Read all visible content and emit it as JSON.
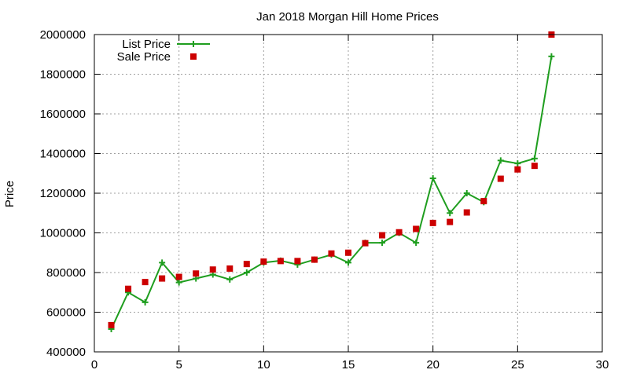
{
  "chart_data": {
    "type": "line",
    "title": "Jan 2018 Morgan Hill Home Prices",
    "xlabel": "",
    "ylabel": "Price",
    "xlim": [
      0,
      30
    ],
    "ylim": [
      400000,
      2000000
    ],
    "xticks": [
      0,
      5,
      10,
      15,
      20,
      25,
      30
    ],
    "yticks": [
      400000,
      600000,
      800000,
      1000000,
      1200000,
      1400000,
      1600000,
      1800000,
      2000000
    ],
    "x_tick_labels": [
      "0",
      "5",
      "10",
      "15",
      "20",
      "25",
      "30"
    ],
    "y_tick_labels": [
      "400000",
      "600000",
      "800000",
      "1000000",
      "1200000",
      "1400000",
      "1600000",
      "1800000",
      "2000000"
    ],
    "grid": true,
    "legend_position": "top-left",
    "series": [
      {
        "name": "List Price",
        "style": "lines-points",
        "marker": "plus",
        "color": "#1f9e1f",
        "x": [
          1,
          2,
          3,
          4,
          5,
          6,
          7,
          8,
          9,
          10,
          11,
          12,
          13,
          14,
          15,
          16,
          17,
          18,
          19,
          20,
          21,
          22,
          23,
          24,
          25,
          26,
          27
        ],
        "y": [
          515000,
          700000,
          650000,
          850000,
          750000,
          770000,
          790000,
          765000,
          800000,
          850000,
          860000,
          840000,
          865000,
          890000,
          850000,
          950000,
          950000,
          1000000,
          950000,
          1275000,
          1100000,
          1200000,
          1155000,
          1365000,
          1350000,
          1375000,
          1890000
        ]
      },
      {
        "name": "Sale Price",
        "style": "points",
        "marker": "square",
        "color": "#cc0000",
        "x": [
          1,
          2,
          3,
          4,
          5,
          6,
          7,
          8,
          9,
          10,
          11,
          12,
          13,
          14,
          15,
          16,
          17,
          18,
          19,
          20,
          21,
          22,
          23,
          24,
          25,
          26,
          27
        ],
        "y": [
          535000,
          718000,
          752000,
          770000,
          778000,
          795000,
          815000,
          820000,
          843000,
          855000,
          858000,
          858000,
          865000,
          896000,
          900000,
          948000,
          988000,
          1003000,
          1020000,
          1050000,
          1055000,
          1103000,
          1160000,
          1273000,
          1320000,
          1338000,
          2000000
        ]
      }
    ]
  }
}
